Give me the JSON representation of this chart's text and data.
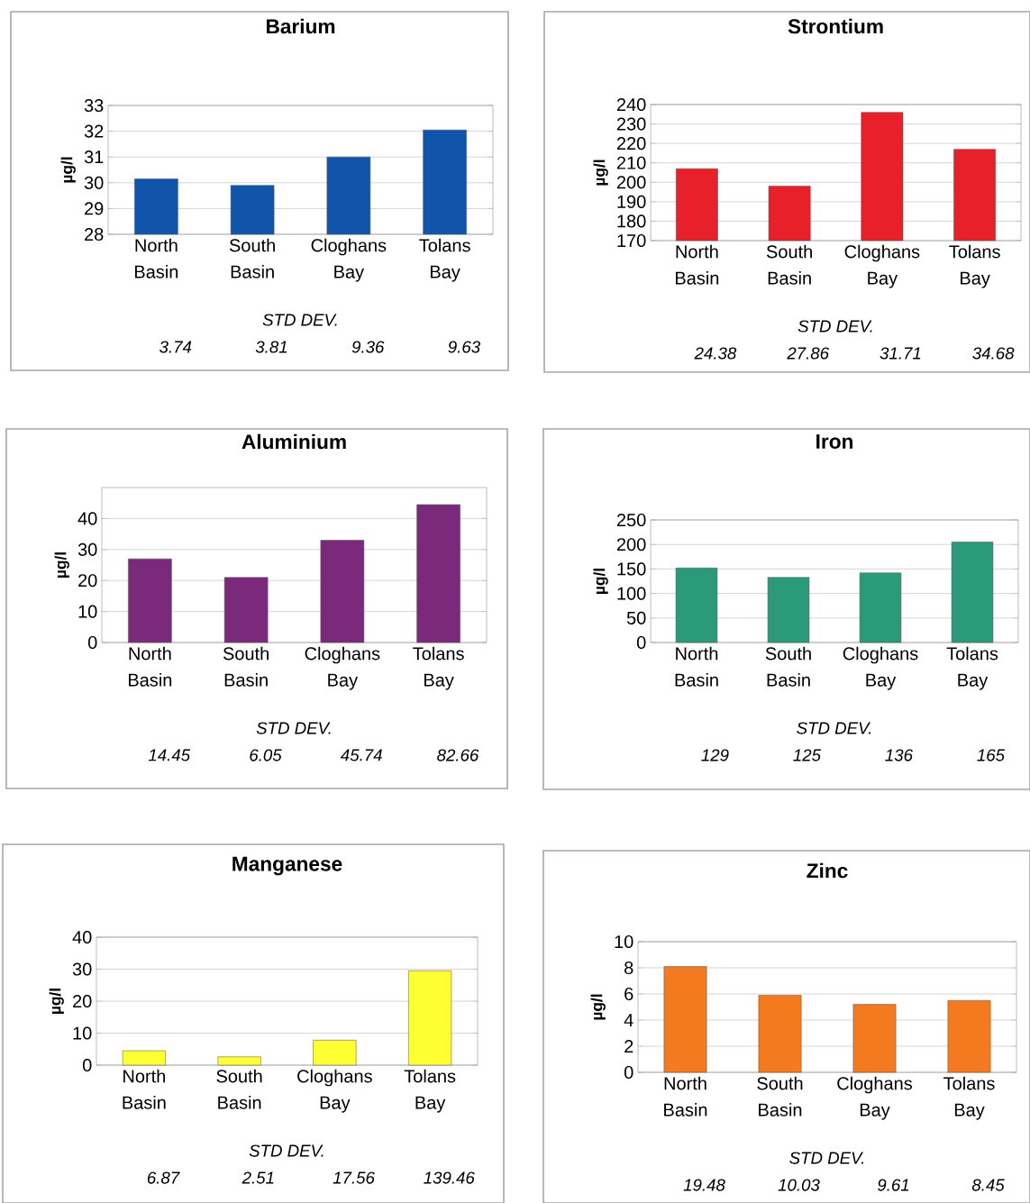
{
  "chart_data": [
    {
      "type": "bar",
      "title": "Barium",
      "ylabel": "µg/l",
      "categories": [
        "North Basin",
        "South Basin",
        "Cloghans Bay",
        "Tolans Bay"
      ],
      "values": [
        30.15,
        29.9,
        31.0,
        32.05
      ],
      "color": "#1155aa",
      "ylim": [
        28,
        33
      ],
      "yticks": [
        28,
        29,
        30,
        31,
        32,
        33
      ],
      "grid": "y",
      "annotations": [
        "STD DEV.",
        "3.74",
        "3.81",
        "9.36",
        "9.63"
      ]
    },
    {
      "type": "bar",
      "title": "Strontium",
      "ylabel": "µg/l",
      "categories": [
        "North Basin",
        "South Basin",
        "Cloghans Bay",
        "Tolans Bay"
      ],
      "values": [
        207,
        198,
        236,
        217
      ],
      "color": "#e8202a",
      "ylim": [
        170,
        240
      ],
      "yticks": [
        170,
        180,
        190,
        200,
        210,
        220,
        230,
        240
      ],
      "grid": "y",
      "annotations": [
        "STD DEV.",
        "24.38",
        "27.86",
        "31.71",
        "34.68"
      ]
    },
    {
      "type": "bar",
      "title": "Aluminium",
      "ylabel": "µg/l",
      "categories": [
        "North Basin",
        "South Basin",
        "Cloghans Bay",
        "Tolans Bay"
      ],
      "values": [
        27,
        21,
        33,
        44.5
      ],
      "color": "#7b2a7b",
      "ylim": [
        0,
        50
      ],
      "yticks": [
        0,
        10,
        20,
        30,
        40
      ],
      "grid": "y",
      "annotations": [
        "STD DEV.",
        "14.45",
        "6.05",
        "45.74",
        "82.66"
      ]
    },
    {
      "type": "bar",
      "title": "Iron",
      "ylabel": "µg/l",
      "categories": [
        "North Basin",
        "South Basin",
        "Cloghans Bay",
        "Tolans Bay"
      ],
      "values": [
        152,
        133,
        142,
        205
      ],
      "color": "#2a9a78",
      "ylim": [
        0,
        250
      ],
      "yticks": [
        0,
        50,
        100,
        150,
        200,
        250
      ],
      "grid": "y",
      "annotations": [
        "STD DEV.",
        "129",
        "125",
        "136",
        "165"
      ]
    },
    {
      "type": "bar",
      "title": "Manganese",
      "ylabel": "µg/l",
      "categories": [
        "North Basin",
        "South Basin",
        "Cloghans Bay",
        "Tolans Bay"
      ],
      "values": [
        4.5,
        2.6,
        7.8,
        29.5
      ],
      "color": "#ffff33",
      "ylim": [
        0,
        40
      ],
      "yticks": [
        0,
        10,
        20,
        30,
        40
      ],
      "grid": "y",
      "annotations": [
        "STD DEV.",
        "6.87",
        "2.51",
        "17.56",
        "139.46"
      ]
    },
    {
      "type": "bar",
      "title": "Zinc",
      "ylabel": "µg/l",
      "categories": [
        "North Basin",
        "South Basin",
        "Cloghans Bay",
        "Tolans Bay"
      ],
      "values": [
        8.1,
        5.9,
        5.2,
        5.5
      ],
      "color": "#f47a20",
      "ylim": [
        0,
        10
      ],
      "yticks": [
        0,
        2,
        4,
        6,
        8,
        10
      ],
      "grid": "y",
      "annotations": [
        "STD DEV.",
        "19.48",
        "10.03",
        "9.61",
        "8.45"
      ]
    }
  ]
}
